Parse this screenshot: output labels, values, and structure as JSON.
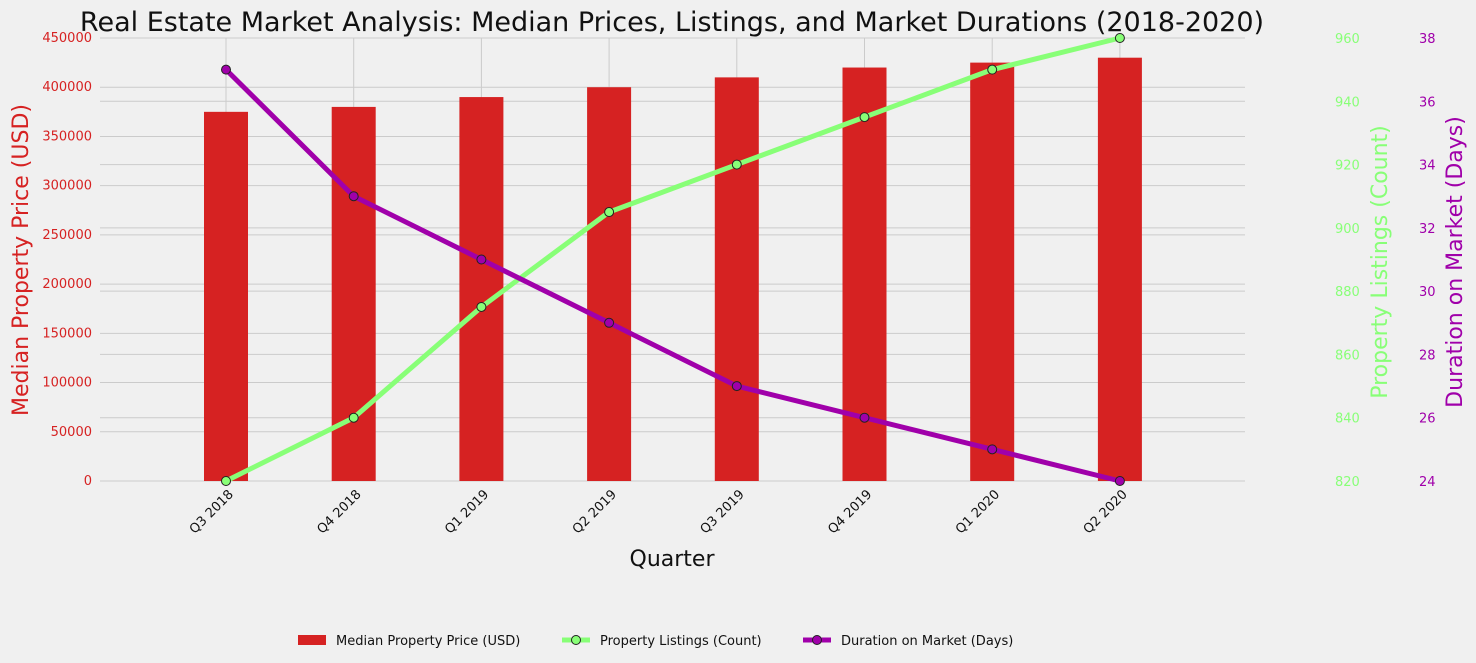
{
  "chart_data": {
    "type": "bar",
    "title": "Real Estate Market Analysis: Median Prices, Listings, and Market Durations (2018-2020)",
    "xlabel": "Quarter",
    "categories": [
      "Q3 2018",
      "Q4 2018",
      "Q1 2019",
      "Q2 2019",
      "Q3 2019",
      "Q4 2019",
      "Q1 2020",
      "Q2 2020"
    ],
    "grid": true,
    "legend_placement": "bottom-center",
    "series": [
      {
        "name": "Median Property Price (USD)",
        "type": "bar",
        "axis": "left",
        "color": "#d62222",
        "values": [
          375000,
          380000,
          390000,
          400000,
          410000,
          420000,
          425000,
          430000
        ]
      },
      {
        "name": "Property Listings (Count)",
        "type": "line",
        "axis": "right1",
        "color": "#88ff77",
        "values": [
          820,
          840,
          875,
          905,
          920,
          935,
          950,
          960
        ]
      },
      {
        "name": "Duration on Market (Days)",
        "type": "line",
        "axis": "right2",
        "color": "#a000aa",
        "values": [
          37,
          33,
          31,
          29,
          27,
          26,
          25,
          24
        ]
      }
    ],
    "axes": {
      "left": {
        "label": "Median Property Price (USD)",
        "color": "#d62222",
        "ylim": [
          0,
          450000
        ],
        "ticks": [
          0,
          50000,
          100000,
          150000,
          200000,
          250000,
          300000,
          350000,
          400000,
          450000
        ]
      },
      "right1": {
        "label": "Property Listings (Count)",
        "color": "#88ff77",
        "ylim": [
          820,
          960
        ],
        "ticks": [
          820,
          840,
          860,
          880,
          900,
          920,
          940,
          960
        ]
      },
      "right2": {
        "label": "Duration on Market (Days)",
        "color": "#a000aa",
        "ylim": [
          24,
          38
        ],
        "ticks": [
          24,
          26,
          28,
          30,
          32,
          34,
          36,
          38
        ]
      }
    }
  }
}
